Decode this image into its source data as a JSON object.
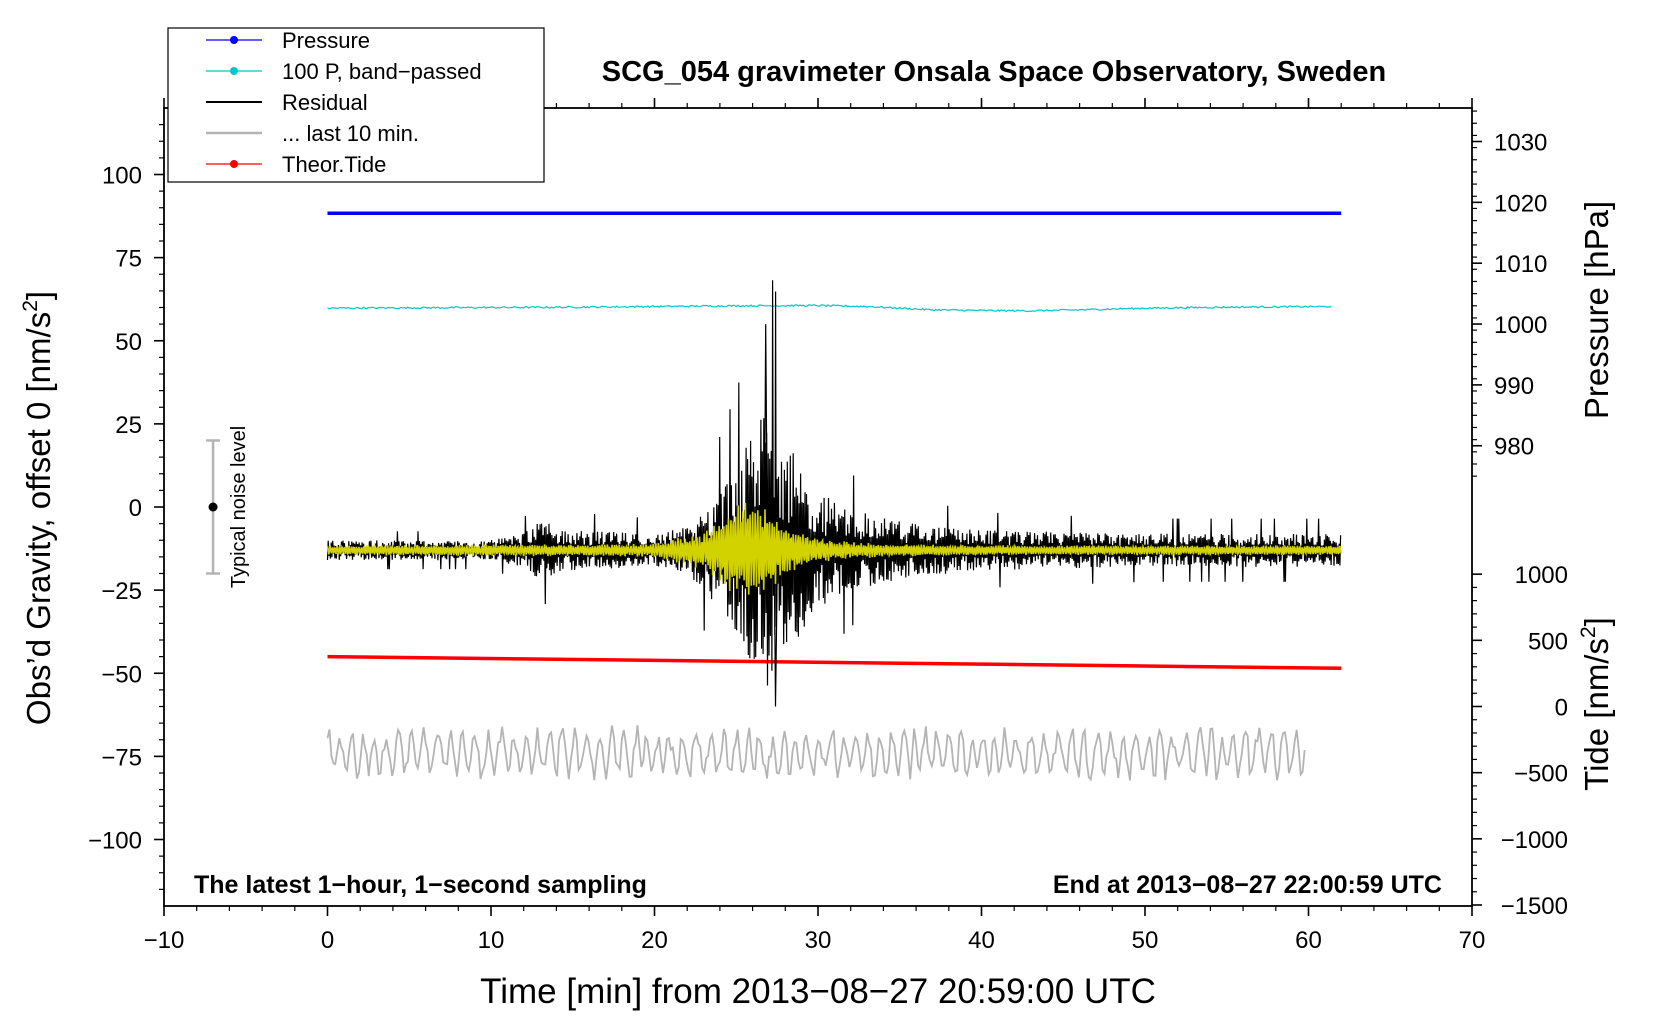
{
  "chart_data": {
    "type": "line",
    "title": "SCG_054 gravimeter Onsala Space Observatory, Sweden",
    "xlabel": "Time [min] from 2013−08−27 20:59:00 UTC",
    "ylabel_left_prefix": "Obs’d Gravity, offset 0 [nm/s",
    "ylabel_left_sup": "2",
    "ylabel_left_suffix": "]",
    "ylabel_right_top": "Pressure [hPa]",
    "ylabel_right_bottom_prefix": "Tide [nm/s",
    "ylabel_right_bottom_sup": "2",
    "ylabel_right_bottom_suffix": "]",
    "xlim": [
      -10,
      70
    ],
    "ylim": [
      -120,
      120
    ],
    "x_ticks": [
      -10,
      0,
      10,
      20,
      30,
      40,
      50,
      60,
      70
    ],
    "x_tick_labels": [
      "−10",
      "0",
      "10",
      "20",
      "30",
      "40",
      "50",
      "60",
      "70"
    ],
    "y_ticks": [
      100,
      75,
      50,
      25,
      0,
      -25,
      -50,
      -75,
      -100
    ],
    "y_tick_labels": [
      "100",
      "75",
      "50",
      "25",
      "0",
      "−25",
      "−50",
      "−75",
      "−100"
    ],
    "pressure_ticks": [
      1030,
      1020,
      1010,
      1000,
      990,
      980
    ],
    "pressure_tick_labels": [
      "1030",
      "1020",
      "1010",
      "1000",
      "990",
      "980"
    ],
    "tide_ticks": [
      1000,
      500,
      0,
      -500,
      -1000,
      -1500
    ],
    "tide_tick_labels": [
      "1000",
      "500",
      "0",
      "−500",
      "−1000",
      "−1500"
    ],
    "legend": {
      "position": "top-left",
      "entries": [
        {
          "label": "Pressure",
          "color": "#0000ff",
          "marker": true
        },
        {
          "label": "100 P, band−passed",
          "color": "#00c8c8",
          "marker": true
        },
        {
          "label": "Residual",
          "color": "#000000",
          "marker": false
        },
        {
          "label": "... last 10 min.",
          "color": "#b4b4b4",
          "marker": false
        },
        {
          "label": "Theor.Tide",
          "color": "#ff0000",
          "marker": true
        }
      ]
    },
    "annotations": {
      "bottom_left": "The latest 1−hour, 1−second sampling",
      "bottom_right": "End at 2013−08−27 22:00:59 UTC",
      "noise_label": "Typical noise level"
    },
    "noise_bar": {
      "x": -7,
      "center": 0,
      "half_range": 20
    },
    "series": [
      {
        "name": "Pressure",
        "color": "#0000ff",
        "x_range": [
          0,
          62
        ],
        "level_hpa": 1018.2,
        "plotted_on": "left-axis value 88.3"
      },
      {
        "name": "100 P, band-passed",
        "color": "#00c8c8",
        "x_range": [
          0,
          61.5
        ],
        "x": [
          0,
          5,
          10,
          15,
          20,
          25,
          30,
          33,
          35,
          37,
          40,
          43,
          46,
          50,
          55,
          58,
          61.5
        ],
        "values": [
          59.8,
          59.9,
          60.0,
          60.1,
          60.3,
          60.5,
          60.6,
          60.3,
          59.8,
          59.3,
          59.1,
          59.0,
          59.3,
          59.8,
          60.1,
          60.2,
          60.3
        ]
      },
      {
        "name": "Residual",
        "color": "#000000",
        "x_range": [
          0,
          62
        ],
        "baseline": -13,
        "envelope_x": [
          0,
          10,
          12,
          13,
          15,
          20,
          22,
          24,
          25,
          26,
          27,
          28,
          29,
          30,
          32,
          34,
          36,
          40,
          50,
          62
        ],
        "envelope_amp": [
          3,
          3,
          5,
          9,
          6,
          5,
          7,
          18,
          25,
          35,
          45,
          35,
          24,
          18,
          12,
          10,
          8,
          6,
          5,
          5
        ],
        "extrema": {
          "max": 55,
          "min": -60
        }
      },
      {
        "name": "Residual, smoothed",
        "color": "#d2d200",
        "x_range": [
          0,
          62
        ],
        "baseline": -13,
        "envelope_x": [
          0,
          20,
          23,
          24.5,
          26,
          27,
          28,
          29,
          31,
          34,
          40,
          62
        ],
        "envelope_amp": [
          1.5,
          2,
          6,
          13,
          16,
          12,
          8,
          5,
          3,
          2,
          1.5,
          1.5
        ]
      },
      {
        "name": "... last 10 min.",
        "color": "#b4b4b4",
        "x_range": [
          0,
          59.8
        ],
        "baseline": -74,
        "amplitude": 6
      },
      {
        "name": "Theor.Tide",
        "color": "#ff0000",
        "x": [
          0,
          62
        ],
        "values": [
          -45,
          -48.5
        ]
      }
    ]
  }
}
